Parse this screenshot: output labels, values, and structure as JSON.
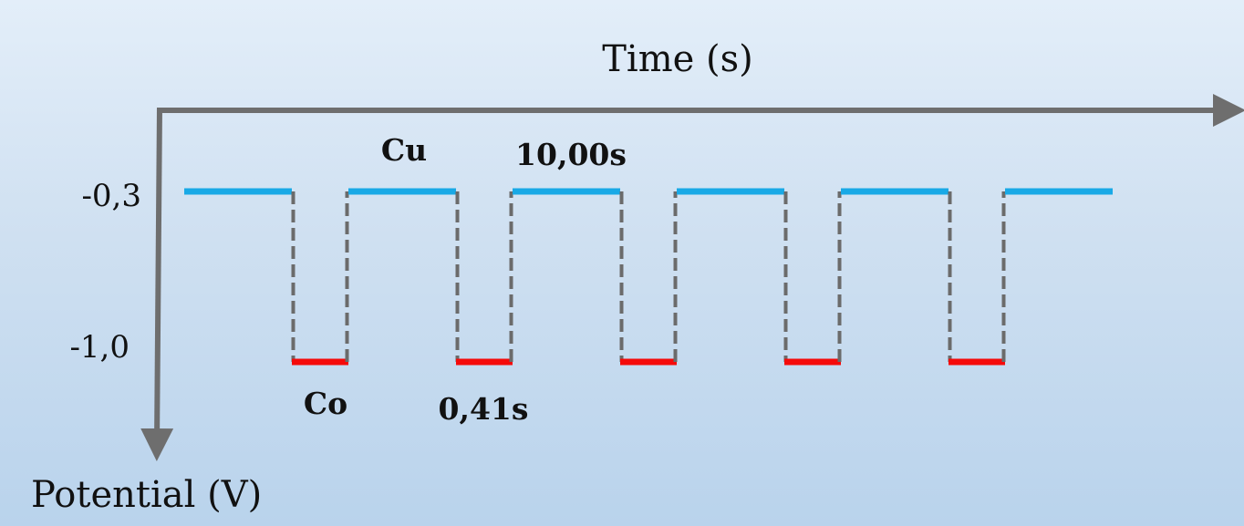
{
  "diagram": {
    "x_axis_label": "Time (s)",
    "y_axis_label": "Potential (V)",
    "y_ticks": [
      "-0,3",
      "-1,0"
    ],
    "annotations": {
      "cu_label": "Cu",
      "cu_time": "10,00s",
      "co_label": "Co",
      "co_time": "0,41s"
    },
    "pulse_sequence": {
      "high_level_v": -0.3,
      "low_level_v": -1.0,
      "high_duration_s": 10.0,
      "low_duration_s": 0.41,
      "cycles": 5,
      "high_color": "#19a9e6",
      "low_color": "#f50a0a",
      "transition_color": "#6b6b6b",
      "axis_color": "#6e6e6e"
    }
  }
}
